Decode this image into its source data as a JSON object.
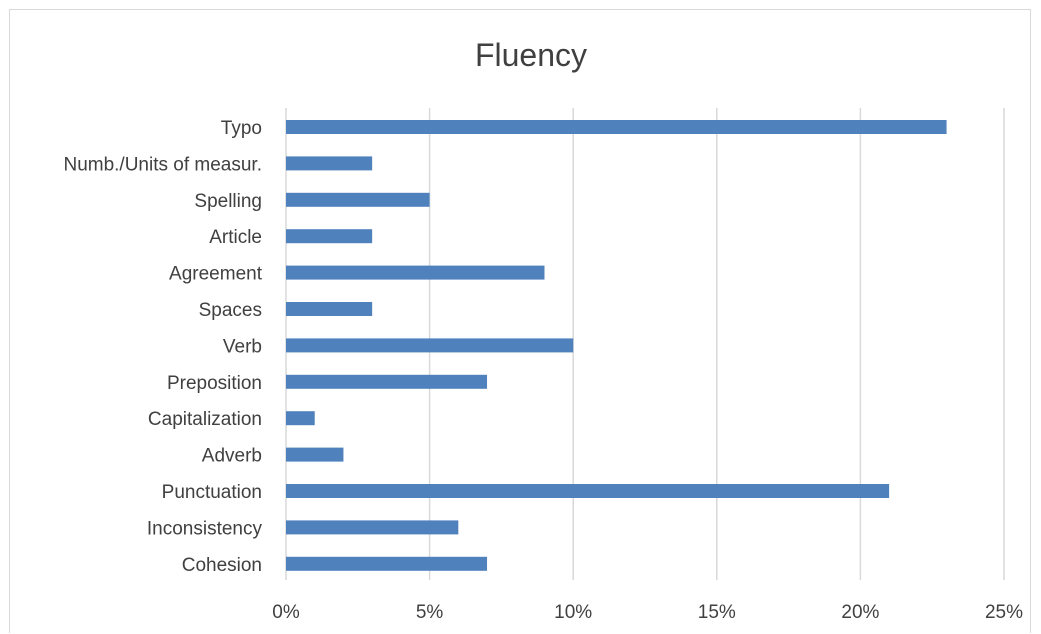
{
  "chart_data": {
    "type": "bar",
    "orientation": "horizontal",
    "title": "Fluency",
    "xlabel": "",
    "ylabel": "",
    "categories": [
      "Typo",
      "Numb./Units of measur.",
      "Spelling",
      "Article",
      "Agreement",
      "Spaces",
      "Verb",
      "Preposition",
      "Capitalization",
      "Adverb",
      "Punctuation",
      "Inconsistency",
      "Cohesion"
    ],
    "values": [
      23,
      3,
      5,
      3,
      9,
      3,
      10,
      7,
      1,
      2,
      21,
      6,
      7
    ],
    "value_unit": "%",
    "xlim": [
      0,
      25
    ],
    "xticks": [
      0,
      5,
      10,
      15,
      20,
      25
    ],
    "xtick_labels": [
      "0%",
      "5%",
      "10%",
      "15%",
      "20%",
      "25%"
    ],
    "grid": "vertical",
    "legend": "none",
    "bar_color": "#4f81bd",
    "grid_color": "#d9d9d9",
    "text_color": "#404040"
  }
}
